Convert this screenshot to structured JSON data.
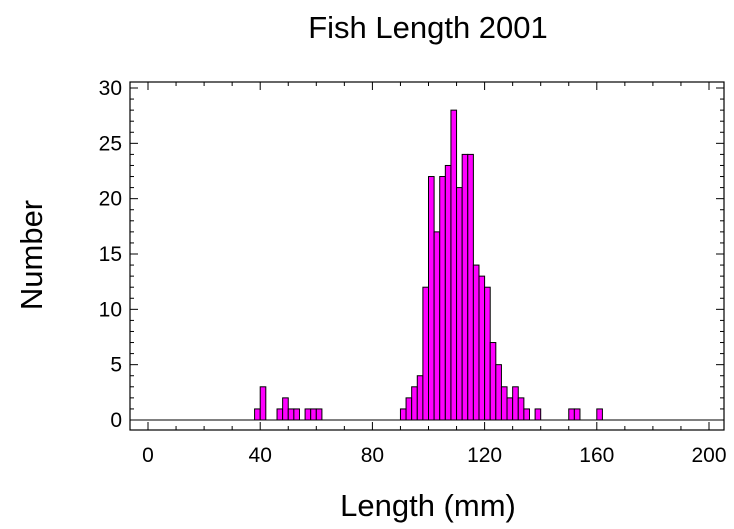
{
  "chart_data": {
    "type": "bar",
    "title": "Fish Length 2001",
    "xlabel": "Length (mm)",
    "ylabel": "Number",
    "xlim": [
      0,
      200
    ],
    "ylim": [
      0,
      30
    ],
    "xticks": [
      0,
      40,
      80,
      120,
      160,
      200
    ],
    "yticks": [
      0,
      5,
      10,
      15,
      20,
      25,
      30
    ],
    "bin_width": 2,
    "bar_color": "#ff00ff",
    "bins": [
      {
        "x": 38,
        "count": 1
      },
      {
        "x": 40,
        "count": 3
      },
      {
        "x": 46,
        "count": 1
      },
      {
        "x": 48,
        "count": 2
      },
      {
        "x": 50,
        "count": 1
      },
      {
        "x": 52,
        "count": 1
      },
      {
        "x": 56,
        "count": 1
      },
      {
        "x": 58,
        "count": 1
      },
      {
        "x": 60,
        "count": 1
      },
      {
        "x": 90,
        "count": 1
      },
      {
        "x": 92,
        "count": 2
      },
      {
        "x": 94,
        "count": 3
      },
      {
        "x": 96,
        "count": 4
      },
      {
        "x": 98,
        "count": 12
      },
      {
        "x": 100,
        "count": 22
      },
      {
        "x": 102,
        "count": 17
      },
      {
        "x": 104,
        "count": 22
      },
      {
        "x": 106,
        "count": 23
      },
      {
        "x": 108,
        "count": 28
      },
      {
        "x": 110,
        "count": 21
      },
      {
        "x": 112,
        "count": 24
      },
      {
        "x": 114,
        "count": 24
      },
      {
        "x": 116,
        "count": 14
      },
      {
        "x": 118,
        "count": 13
      },
      {
        "x": 120,
        "count": 12
      },
      {
        "x": 122,
        "count": 7
      },
      {
        "x": 124,
        "count": 5
      },
      {
        "x": 126,
        "count": 3
      },
      {
        "x": 128,
        "count": 2
      },
      {
        "x": 130,
        "count": 3
      },
      {
        "x": 132,
        "count": 2
      },
      {
        "x": 134,
        "count": 1
      },
      {
        "x": 138,
        "count": 1
      },
      {
        "x": 150,
        "count": 1
      },
      {
        "x": 152,
        "count": 1
      },
      {
        "x": 160,
        "count": 1
      }
    ]
  }
}
